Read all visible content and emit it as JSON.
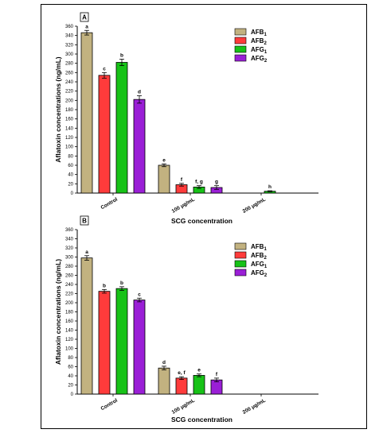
{
  "colors": {
    "AFB1": "#c2b280",
    "AFB2": "#ff3b3b",
    "AFG1": "#17c217",
    "AFG2": "#9a1fd6"
  },
  "chart_data": [
    {
      "type": "bar",
      "panel_label": "A",
      "xlabel": "SCG concentration",
      "ylabel": "Aflatoxin concentrations (ng/mL)",
      "categories": [
        "Control",
        "100 μg/mL",
        "200 μg/mL"
      ],
      "ylim": [
        0,
        360
      ],
      "ytick_step": 20,
      "legend_position": "top-right",
      "series": [
        {
          "name": "AFB1",
          "base": "AFB",
          "sub": "1",
          "values": [
            346,
            60,
            null
          ],
          "errors": [
            5,
            3,
            null
          ],
          "letters": [
            "a",
            "e",
            ""
          ]
        },
        {
          "name": "AFB2",
          "base": "AFB",
          "sub": "2",
          "values": [
            254,
            18,
            null
          ],
          "errors": [
            6,
            3,
            null
          ],
          "letters": [
            "c",
            "f",
            ""
          ]
        },
        {
          "name": "AFG1",
          "base": "AFG",
          "sub": "1",
          "values": [
            282,
            13,
            4
          ],
          "errors": [
            7,
            3,
            1
          ],
          "letters": [
            "b",
            "f, g",
            "h"
          ]
        },
        {
          "name": "AFG2",
          "base": "AFG",
          "sub": "2",
          "values": [
            202,
            12,
            null
          ],
          "errors": [
            8,
            4,
            null
          ],
          "letters": [
            "d",
            "g",
            ""
          ]
        }
      ]
    },
    {
      "type": "bar",
      "panel_label": "B",
      "xlabel": "SCG concentration",
      "ylabel": "Aflatoxin concentrations (ng/mL)",
      "categories": [
        "Control",
        "100 μg/mL",
        "200 μg/mL"
      ],
      "ylim": [
        0,
        360
      ],
      "ytick_step": 20,
      "legend_position": "top-right",
      "series": [
        {
          "name": "AFB1",
          "base": "AFB",
          "sub": "1",
          "values": [
            298,
            57,
            null
          ],
          "errors": [
            5,
            4,
            null
          ],
          "letters": [
            "a",
            "d",
            ""
          ]
        },
        {
          "name": "AFB2",
          "base": "AFB",
          "sub": "2",
          "values": [
            225,
            35,
            null
          ],
          "errors": [
            4,
            3,
            null
          ],
          "letters": [
            "b",
            "e, f",
            ""
          ]
        },
        {
          "name": "AFG1",
          "base": "AFG",
          "sub": "1",
          "values": [
            231,
            41,
            null
          ],
          "errors": [
            4,
            3,
            null
          ],
          "letters": [
            "b",
            "e",
            ""
          ]
        },
        {
          "name": "AFG2",
          "base": "AFG",
          "sub": "2",
          "values": [
            206,
            31,
            null
          ],
          "errors": [
            4,
            4,
            null
          ],
          "letters": [
            "c",
            "f",
            ""
          ]
        }
      ]
    }
  ]
}
